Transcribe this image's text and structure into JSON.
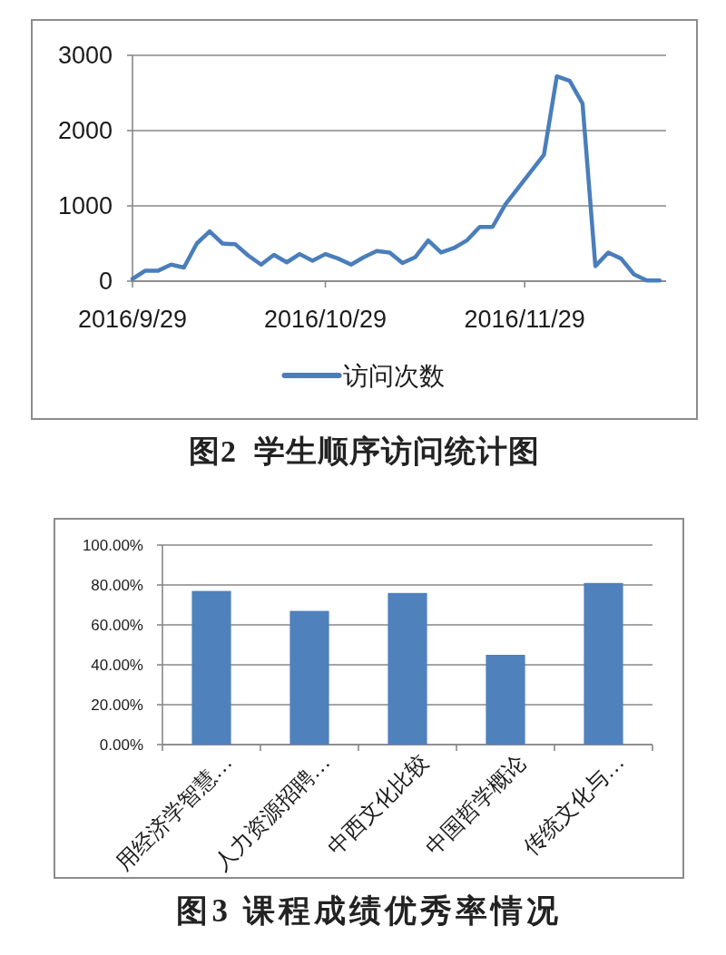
{
  "chart_data": [
    {
      "type": "line",
      "title": "图2  学生顺序访问统计图",
      "x": [
        "2016-09-29",
        "2016-10-01",
        "2016-10-03",
        "2016-10-05",
        "2016-10-07",
        "2016-10-09",
        "2016-10-11",
        "2016-10-13",
        "2016-10-15",
        "2016-10-17",
        "2016-10-19",
        "2016-10-21",
        "2016-10-23",
        "2016-10-25",
        "2016-10-27",
        "2016-10-29",
        "2016-10-31",
        "2016-11-02",
        "2016-11-04",
        "2016-11-06",
        "2016-11-08",
        "2016-11-10",
        "2016-11-12",
        "2016-11-14",
        "2016-11-16",
        "2016-11-18",
        "2016-11-20",
        "2016-11-22",
        "2016-11-24",
        "2016-11-26",
        "2016-11-28",
        "2016-11-30",
        "2016-12-02",
        "2016-12-04",
        "2016-12-06",
        "2016-12-08",
        "2016-12-10",
        "2016-12-12",
        "2016-12-14",
        "2016-12-16",
        "2016-12-18",
        "2016-12-20"
      ],
      "series": [
        {
          "name": "访问次数",
          "color": "#4a7ebb",
          "values": [
            30,
            140,
            140,
            220,
            180,
            500,
            660,
            500,
            490,
            340,
            220,
            350,
            250,
            360,
            270,
            360,
            300,
            220,
            320,
            400,
            380,
            240,
            320,
            540,
            380,
            440,
            540,
            720,
            720,
            1020,
            1240,
            1460,
            1680,
            2720,
            2660,
            2360,
            200,
            380,
            300,
            90,
            10,
            10
          ]
        }
      ],
      "xlim": [
        "2016-09-29",
        "2016-12-21"
      ],
      "xticks": [
        {
          "value": "2016-09-29",
          "label": "2016/9/29"
        },
        {
          "value": "2016-10-29",
          "label": "2016/10/29"
        },
        {
          "value": "2016-11-29",
          "label": "2016/11/29"
        }
      ],
      "ylim": [
        0,
        3000
      ],
      "yticks": [
        0,
        1000,
        2000,
        3000
      ],
      "grid": "y",
      "legend": "bottom"
    },
    {
      "type": "bar",
      "title": "图3 课程成绩优秀率情况",
      "categories": [
        "用经济学智慧…",
        "人力资源招聘…",
        "中西文化比较",
        "中国哲学概论",
        "传统文化与…"
      ],
      "values": [
        77,
        67,
        76,
        45,
        81
      ],
      "color": "#4f81bd",
      "ylim": [
        0,
        100
      ],
      "yticks": [
        {
          "value": 0,
          "label": "0.00%"
        },
        {
          "value": 20,
          "label": "20.00%"
        },
        {
          "value": 40,
          "label": "40.00%"
        },
        {
          "value": 60,
          "label": "60.00%"
        },
        {
          "value": 80,
          "label": "80.00%"
        },
        {
          "value": 100,
          "label": "100.00%"
        }
      ],
      "grid": "y"
    }
  ]
}
